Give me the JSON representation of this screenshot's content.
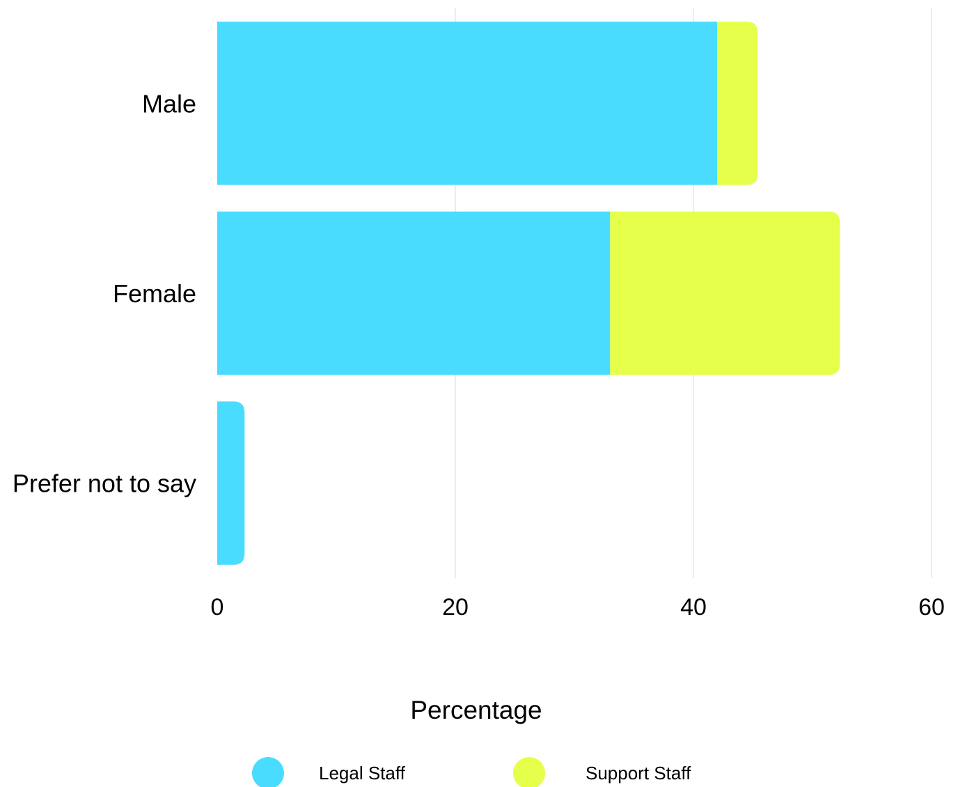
{
  "chart_data": {
    "type": "bar",
    "orientation": "horizontal",
    "stacked": true,
    "categories": [
      "Male",
      "Female",
      "Prefer not to say"
    ],
    "series": [
      {
        "name": "Legal Staff",
        "color": "#4ADCFF",
        "values": [
          42,
          33,
          2.3
        ]
      },
      {
        "name": "Support Staff",
        "color": "#E5FF4A",
        "values": [
          3.4,
          19.3,
          0
        ]
      }
    ],
    "xlabel": "Percentage",
    "ylabel": "",
    "xlim": [
      0,
      60
    ],
    "xticks": [
      "0",
      "20",
      "40",
      "60"
    ],
    "xtick_values": [
      0,
      20,
      40,
      60
    ],
    "grid": "vertical",
    "legend_position": "bottom"
  }
}
